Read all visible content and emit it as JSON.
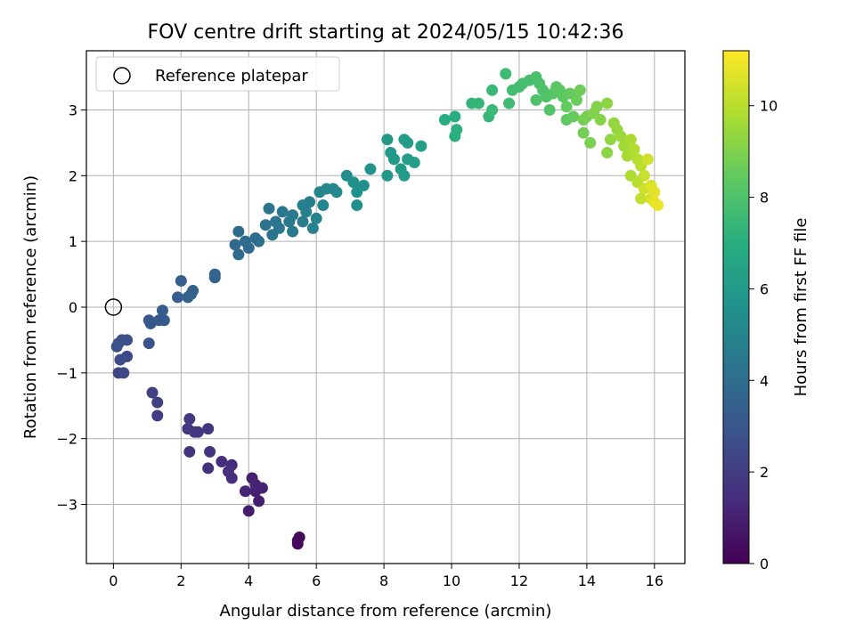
{
  "chart_data": {
    "type": "scatter",
    "title": "FOV centre drift starting at 2024/05/15 10:42:36",
    "xlabel": "Angular distance from reference (arcmin)",
    "ylabel": "Rotation from reference (arcmin)",
    "xlim": [
      -0.8,
      16.9
    ],
    "ylim": [
      -3.9,
      3.9
    ],
    "xticks": [
      0,
      2,
      4,
      6,
      8,
      10,
      12,
      14,
      16
    ],
    "yticks": [
      -3,
      -2,
      -1,
      0,
      1,
      2,
      3
    ],
    "grid": true,
    "legend": {
      "placement": "top-left",
      "entries": [
        "Reference platepar"
      ]
    },
    "reference_point": {
      "x": 0,
      "y": 0
    },
    "colorbar": {
      "label": "Hours from first FF file",
      "min": 0,
      "max": 11.2,
      "ticks": [
        0,
        2,
        4,
        6,
        8,
        10
      ],
      "colormap": "viridis"
    },
    "points": [
      [
        5.45,
        -3.55,
        0.2
      ],
      [
        5.5,
        -3.5,
        0.25
      ],
      [
        5.45,
        -3.6,
        0.3
      ],
      [
        4.0,
        -3.1,
        0.9
      ],
      [
        4.3,
        -2.95,
        1.0
      ],
      [
        4.1,
        -2.6,
        1.0
      ],
      [
        4.2,
        -2.8,
        1.05
      ],
      [
        4.4,
        -2.75,
        1.1
      ],
      [
        3.9,
        -2.8,
        1.15
      ],
      [
        4.2,
        -2.7,
        1.1
      ],
      [
        3.5,
        -2.6,
        1.4
      ],
      [
        3.5,
        -2.4,
        1.45
      ],
      [
        3.2,
        -2.35,
        1.5
      ],
      [
        3.4,
        -2.5,
        1.5
      ],
      [
        2.8,
        -2.45,
        1.6
      ],
      [
        2.85,
        -2.2,
        1.65
      ],
      [
        2.25,
        -2.2,
        1.7
      ],
      [
        2.8,
        -1.85,
        1.75
      ],
      [
        2.2,
        -1.85,
        1.8
      ],
      [
        2.4,
        -1.9,
        1.85
      ],
      [
        2.25,
        -1.7,
        1.9
      ],
      [
        2.5,
        -1.9,
        1.85
      ],
      [
        1.3,
        -1.65,
        2.0
      ],
      [
        1.3,
        -1.45,
        2.1
      ],
      [
        1.15,
        -1.3,
        2.15
      ],
      [
        0.15,
        -1.0,
        2.4
      ],
      [
        0.3,
        -1.0,
        2.45
      ],
      [
        0.4,
        -0.75,
        2.5
      ],
      [
        0.2,
        -0.8,
        2.6
      ],
      [
        0.25,
        -0.5,
        2.65
      ],
      [
        0.1,
        -0.6,
        2.7
      ],
      [
        0.4,
        -0.5,
        2.75
      ],
      [
        0.15,
        -0.55,
        2.8
      ],
      [
        1.05,
        -0.55,
        2.9
      ],
      [
        1.05,
        -0.2,
        3.0
      ],
      [
        1.1,
        -0.25,
        3.05
      ],
      [
        1.35,
        -0.2,
        3.1
      ],
      [
        1.5,
        -0.2,
        3.15
      ],
      [
        1.45,
        -0.05,
        3.2
      ],
      [
        1.9,
        0.15,
        3.3
      ],
      [
        2.0,
        0.4,
        3.35
      ],
      [
        2.3,
        0.2,
        3.4
      ],
      [
        2.35,
        0.25,
        3.45
      ],
      [
        2.2,
        0.15,
        3.5
      ],
      [
        3.0,
        0.45,
        3.55
      ],
      [
        3.0,
        0.5,
        3.6
      ],
      [
        3.6,
        0.95,
        3.8
      ],
      [
        3.7,
        0.8,
        3.85
      ],
      [
        3.7,
        1.15,
        3.9
      ],
      [
        4.0,
        0.9,
        3.95
      ],
      [
        3.9,
        1.0,
        4.0
      ],
      [
        4.2,
        1.05,
        4.0
      ],
      [
        4.3,
        1.0,
        4.05
      ],
      [
        4.5,
        1.25,
        4.2
      ],
      [
        4.6,
        1.5,
        4.25
      ],
      [
        4.8,
        1.3,
        4.3
      ],
      [
        4.7,
        1.1,
        4.3
      ],
      [
        4.9,
        1.2,
        4.35
      ],
      [
        5.0,
        1.45,
        4.4
      ],
      [
        5.2,
        1.3,
        4.5
      ],
      [
        5.3,
        1.15,
        4.55
      ],
      [
        5.3,
        1.4,
        4.6
      ],
      [
        5.6,
        1.3,
        4.65
      ],
      [
        5.8,
        1.6,
        4.7
      ],
      [
        5.7,
        1.45,
        4.75
      ],
      [
        5.6,
        1.55,
        4.8
      ],
      [
        5.9,
        1.2,
        4.85
      ],
      [
        6.0,
        1.35,
        4.9
      ],
      [
        6.2,
        1.55,
        5.0
      ],
      [
        6.1,
        1.75,
        5.05
      ],
      [
        6.3,
        1.8,
        5.1
      ],
      [
        6.5,
        1.8,
        5.15
      ],
      [
        6.6,
        1.75,
        5.2
      ],
      [
        6.9,
        2.0,
        5.4
      ],
      [
        7.1,
        1.9,
        5.45
      ],
      [
        7.2,
        1.55,
        5.5
      ],
      [
        7.4,
        1.85,
        5.55
      ],
      [
        7.2,
        1.75,
        5.6
      ],
      [
        7.6,
        2.1,
        5.65
      ],
      [
        8.1,
        2.0,
        5.9
      ],
      [
        8.1,
        2.55,
        5.95
      ],
      [
        8.3,
        2.25,
        6.0
      ],
      [
        8.2,
        2.35,
        6.0
      ],
      [
        8.5,
        2.1,
        6.05
      ],
      [
        8.6,
        2.0,
        6.1
      ],
      [
        8.7,
        2.25,
        6.15
      ],
      [
        8.6,
        2.55,
        6.2
      ],
      [
        8.7,
        2.5,
        6.2
      ],
      [
        8.9,
        2.2,
        6.25
      ],
      [
        9.1,
        2.45,
        6.3
      ],
      [
        9.8,
        2.85,
        6.9
      ],
      [
        10.1,
        2.9,
        7.0
      ],
      [
        10.1,
        2.6,
        7.05
      ],
      [
        10.15,
        2.7,
        7.1
      ],
      [
        10.6,
        3.1,
        7.3
      ],
      [
        10.8,
        3.1,
        7.35
      ],
      [
        11.1,
        2.9,
        7.4
      ],
      [
        11.2,
        3.3,
        7.45
      ],
      [
        11.2,
        3.0,
        7.5
      ],
      [
        11.6,
        3.55,
        7.6
      ],
      [
        11.7,
        3.1,
        7.65
      ],
      [
        11.8,
        3.3,
        7.7
      ],
      [
        12.0,
        3.35,
        7.75
      ],
      [
        12.1,
        3.4,
        7.8
      ],
      [
        12.3,
        3.45,
        7.85
      ],
      [
        12.5,
        3.5,
        7.9
      ],
      [
        12.6,
        3.4,
        7.95
      ],
      [
        12.7,
        3.3,
        8.0
      ],
      [
        12.5,
        3.15,
        8.0
      ],
      [
        12.8,
        3.2,
        8.05
      ],
      [
        12.9,
        3.0,
        8.1
      ],
      [
        13.0,
        3.25,
        8.2
      ],
      [
        13.1,
        3.35,
        8.25
      ],
      [
        13.2,
        3.3,
        8.3
      ],
      [
        13.3,
        3.2,
        8.35
      ],
      [
        13.4,
        2.85,
        8.4
      ],
      [
        13.4,
        3.05,
        8.45
      ],
      [
        13.5,
        3.25,
        8.5
      ],
      [
        13.6,
        2.9,
        8.55
      ],
      [
        13.7,
        3.15,
        8.6
      ],
      [
        13.8,
        3.3,
        8.7
      ],
      [
        13.9,
        2.65,
        8.75
      ],
      [
        13.9,
        2.85,
        8.8
      ],
      [
        14.0,
        2.9,
        8.85
      ],
      [
        14.1,
        2.5,
        8.9
      ],
      [
        14.2,
        2.95,
        9.0
      ],
      [
        14.3,
        3.05,
        9.05
      ],
      [
        14.4,
        2.85,
        9.1
      ],
      [
        14.6,
        2.35,
        9.2
      ],
      [
        14.6,
        3.1,
        9.25
      ],
      [
        14.7,
        2.55,
        9.3
      ],
      [
        14.8,
        2.8,
        9.35
      ],
      [
        14.9,
        2.7,
        9.4
      ],
      [
        15.0,
        2.6,
        9.5
      ],
      [
        15.1,
        2.45,
        9.55
      ],
      [
        15.2,
        2.3,
        9.7
      ],
      [
        15.3,
        2.55,
        9.75
      ],
      [
        15.3,
        2.0,
        9.8
      ],
      [
        15.4,
        2.4,
        9.85
      ],
      [
        15.5,
        2.25,
        9.9
      ],
      [
        15.5,
        1.9,
        10.0
      ],
      [
        15.6,
        2.15,
        10.05
      ],
      [
        15.6,
        1.65,
        10.2
      ],
      [
        15.7,
        2.0,
        10.3
      ],
      [
        15.7,
        1.8,
        10.35
      ],
      [
        15.8,
        2.25,
        10.4
      ],
      [
        15.9,
        1.65,
        10.5
      ],
      [
        15.9,
        1.85,
        10.6
      ],
      [
        16.0,
        1.75,
        10.7
      ],
      [
        16.0,
        1.6,
        10.8
      ],
      [
        16.1,
        1.55,
        10.9
      ]
    ]
  }
}
